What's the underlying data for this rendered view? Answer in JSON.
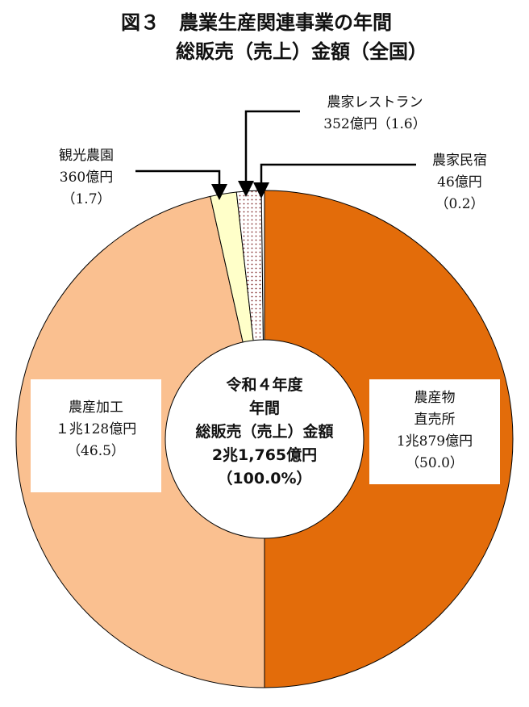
{
  "title": {
    "line1": "図３　農業生産関連事業の年間",
    "line2": "総販売（売上）金額（全国）"
  },
  "center": {
    "line1": "令和４年度",
    "line2": "年間",
    "line3": "総販売（売上）金額",
    "line4": "2兆1,765億円",
    "line5": "（100.0%）"
  },
  "chart_data": {
    "type": "pie",
    "donut": true,
    "start": "12 o'clock",
    "direction": "clockwise",
    "unit": "億円",
    "total": "2兆1,765億円",
    "slices": [
      {
        "name": "農産物直売所",
        "value": 10879,
        "percent": 50.0,
        "color": "#e36c0a",
        "pattern": "solid"
      },
      {
        "name": "農産加工",
        "value": 10128,
        "percent": 46.5,
        "color": "#fac090",
        "pattern": "solid"
      },
      {
        "name": "観光農園",
        "value": 360,
        "percent": 1.7,
        "color": "#ffffc9",
        "pattern": "solid"
      },
      {
        "name": "農家レストラン",
        "value": 352,
        "percent": 1.6,
        "color": "#ffffff",
        "pattern": "dots"
      },
      {
        "name": "農家民宿",
        "value": 46,
        "percent": 0.2,
        "color": "#ffffff",
        "pattern": "solid"
      }
    ],
    "labels": {
      "direct": {
        "line1": "農産物",
        "line2": "直売所",
        "line3": "1兆879億円",
        "line4": "（50.0）"
      },
      "processing": {
        "line1": "農産加工",
        "line2": "１兆128億円",
        "line3": "（46.5）"
      },
      "tourism": {
        "line1": "観光農園",
        "line2": "360億円",
        "line3": "（1.7）"
      },
      "restaurant": {
        "line1": "農家レストラン",
        "line2": "352億円（1.6）"
      },
      "inn": {
        "line1": "農家民宿",
        "line2": "46億円",
        "line3": "（0.2）"
      }
    }
  }
}
